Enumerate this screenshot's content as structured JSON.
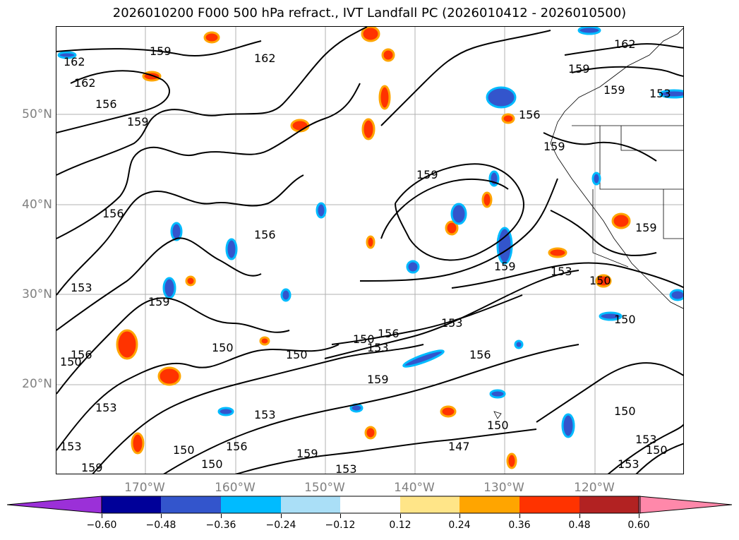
{
  "title": "2026010200 F000 500 hPa refract., IVT Landfall PC (2026010412 - 2026010500)",
  "lat_labels": [
    "50°N",
    "40°N",
    "30°N",
    "20°N"
  ],
  "lon_labels": [
    "170°W",
    "160°W",
    "150°W",
    "140°W",
    "130°W",
    "120°W"
  ],
  "contour_labels": [
    "162",
    "159",
    "162",
    "156",
    "159",
    "162",
    "159",
    "162",
    "159",
    "159",
    "156",
    "156",
    "159",
    "156",
    "159",
    "159",
    "153",
    "150",
    "153",
    "159",
    "150",
    "150",
    "150",
    "156",
    "153",
    "150",
    "153",
    "156",
    "159",
    "150",
    "159",
    "150",
    "150",
    "153",
    "153",
    "156",
    "150",
    "153",
    "156",
    "159",
    "153",
    "147",
    "150",
    "153",
    "150",
    "153",
    "153"
  ],
  "colorbar": {
    "ticks": [
      "−0.60",
      "−0.48",
      "−0.36",
      "−0.24",
      "−0.12",
      "0.12",
      "0.24",
      "0.36",
      "0.48",
      "0.60"
    ],
    "colors": [
      "#9b30d8",
      "#000099",
      "#3355cc",
      "#00bbff",
      "#aadff7",
      "#ffffff",
      "#ffe588",
      "#ffa500",
      "#ff3300",
      "#b22222",
      "#ff88aa"
    ]
  }
}
